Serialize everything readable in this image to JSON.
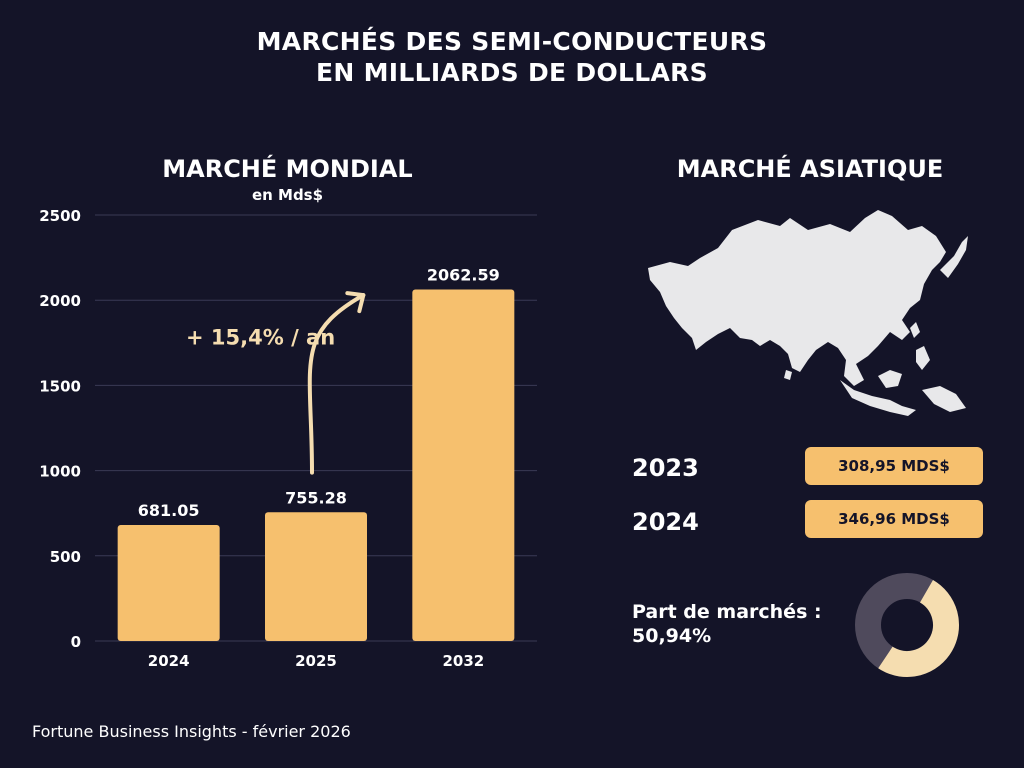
{
  "header": {
    "title_line1": "MARCHÉS DES SEMI-CONDUCTEURS",
    "title_line2": "EN MILLIARDS DE DOLLARS"
  },
  "left": {
    "title": "MARCHÉ MONDIAL",
    "subtitle": "en Mds$"
  },
  "chart_data": {
    "type": "bar",
    "categories": [
      "2024",
      "2025",
      "2032"
    ],
    "values": [
      681.05,
      755.28,
      2062.59
    ],
    "value_labels": [
      "681.05",
      "755.28",
      "2062.59"
    ],
    "ylim": [
      0,
      2500
    ],
    "yticks": [
      0,
      500,
      1000,
      1500,
      2000,
      2500
    ],
    "grid": true,
    "bar_color": "#F6C06E",
    "annotation": "+ 15,4% / an"
  },
  "right": {
    "title": "MARCHÉ ASIATIQUE",
    "rows": [
      {
        "year": "2023",
        "value": "308,95 MDS$"
      },
      {
        "year": "2024",
        "value": "346,96 MDS$"
      }
    ],
    "share_label_line1": "Part de marchés :",
    "share_label_line2": "50,94%",
    "share_fraction": 0.5094,
    "share_color": "#F5DDB0",
    "rest_color": "#4F4A5C"
  },
  "footer": {
    "source": "Fortune Business Insights - février 2026"
  },
  "colors": {
    "background": "#141428",
    "accent": "#F6C06E",
    "map": "#E8E8EA",
    "grid": "#3A3A55"
  }
}
